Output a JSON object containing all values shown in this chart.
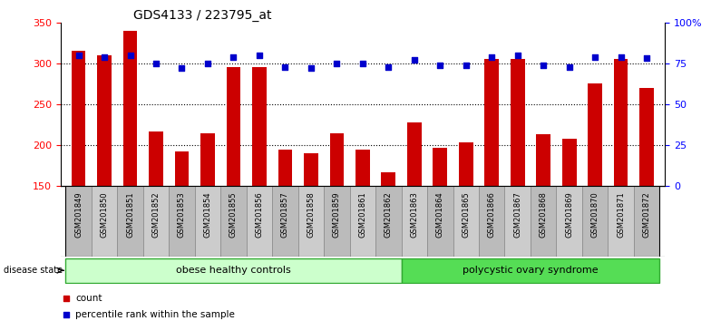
{
  "title": "GDS4133 / 223795_at",
  "samples": [
    "GSM201849",
    "GSM201850",
    "GSM201851",
    "GSM201852",
    "GSM201853",
    "GSM201854",
    "GSM201855",
    "GSM201856",
    "GSM201857",
    "GSM201858",
    "GSM201859",
    "GSM201861",
    "GSM201862",
    "GSM201863",
    "GSM201864",
    "GSM201865",
    "GSM201866",
    "GSM201867",
    "GSM201868",
    "GSM201869",
    "GSM201870",
    "GSM201871",
    "GSM201872"
  ],
  "counts": [
    315,
    310,
    340,
    217,
    193,
    215,
    295,
    295,
    195,
    190,
    215,
    195,
    167,
    228,
    197,
    203,
    305,
    305,
    213,
    208,
    275,
    305,
    270
  ],
  "percentiles": [
    80,
    79,
    80,
    75,
    72,
    75,
    79,
    80,
    73,
    72,
    75,
    75,
    73,
    77,
    74,
    74,
    79,
    80,
    74,
    73,
    79,
    79,
    78
  ],
  "group1_count": 13,
  "group1_label": "obese healthy controls",
  "group2_label": "polycystic ovary syndrome",
  "group1_color": "#ccffcc",
  "group2_color": "#55dd55",
  "tick_bg_odd": "#cccccc",
  "tick_bg_even": "#dddddd",
  "bar_color": "#cc0000",
  "dot_color": "#0000cc",
  "ymin": 150,
  "ymax": 350,
  "yticks": [
    150,
    200,
    250,
    300,
    350
  ],
  "y2ticks": [
    0,
    25,
    50,
    75,
    100
  ],
  "y2labels": [
    "0",
    "25",
    "50",
    "75",
    "100%"
  ],
  "grid_vals": [
    200,
    250,
    300
  ],
  "xlabel_fontsize": 6.0,
  "bar_width": 0.55,
  "dot_size": 18
}
